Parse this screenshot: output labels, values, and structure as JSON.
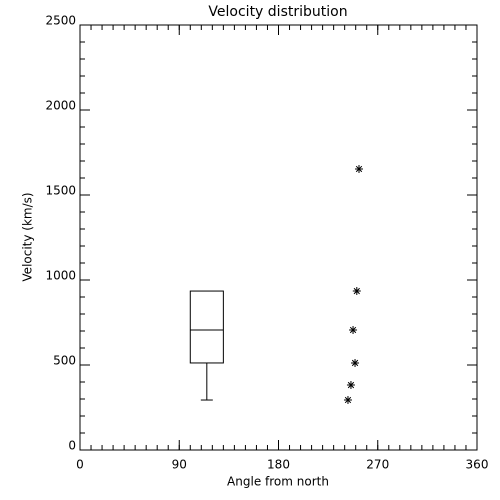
{
  "chart_data": {
    "type": "box-scatter",
    "title": "Velocity distribution",
    "x_label": "Angle from north",
    "y_label": "Velocity (km/s)",
    "xlim": [
      0,
      360
    ],
    "xticks": [
      0,
      90,
      180,
      270,
      360
    ],
    "x_minor_step": 10,
    "ylim": [
      0,
      2500
    ],
    "yticks": [
      0,
      500,
      1000,
      1500,
      2000,
      2500
    ],
    "y_minor_step": 100,
    "box": {
      "x": 115,
      "width": 30,
      "min": 294,
      "q1": 512,
      "median": 706,
      "q3": 935,
      "max": 935
    },
    "points": {
      "x": [
        253,
        251,
        247.6,
        249.4,
        245.7,
        243
      ],
      "y": [
        1653,
        935,
        706,
        512,
        382,
        294
      ]
    },
    "color": "#000000"
  }
}
